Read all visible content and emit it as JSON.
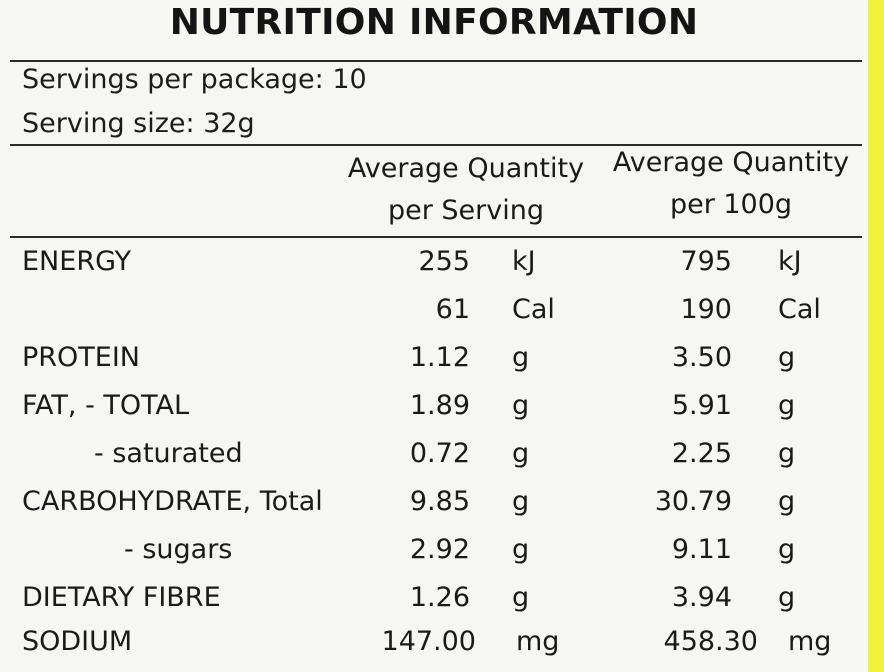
{
  "title": "NUTRITION INFORMATION",
  "servings_per_package": "Servings per package: 10",
  "serving_size": "Serving size: 32g",
  "columns": {
    "per_serving": [
      "Average Quantity",
      "per Serving"
    ],
    "per_100g": [
      "Average Quantity",
      "per 100g"
    ]
  },
  "rows": [
    {
      "label": "ENERGY",
      "serving_value": "255",
      "serving_unit": "kJ",
      "per100_value": "795",
      "per100_unit": "kJ"
    },
    {
      "label": "",
      "serving_value": "61",
      "serving_unit": "Cal",
      "per100_value": "190",
      "per100_unit": "Cal"
    },
    {
      "label": "PROTEIN",
      "serving_value": "1.12",
      "serving_unit": "g",
      "per100_value": "3.50",
      "per100_unit": "g"
    },
    {
      "label": "FAT, - TOTAL",
      "serving_value": "1.89",
      "serving_unit": "g",
      "per100_value": "5.91",
      "per100_unit": "g"
    },
    {
      "label": "- saturated",
      "serving_value": "0.72",
      "serving_unit": "g",
      "per100_value": "2.25",
      "per100_unit": "g"
    },
    {
      "label": "CARBOHYDRATE, Total",
      "serving_value": "9.85",
      "serving_unit": "g",
      "per100_value": "30.79",
      "per100_unit": "g"
    },
    {
      "label": "- sugars",
      "serving_value": "2.92",
      "serving_unit": "g",
      "per100_value": "9.11",
      "per100_unit": "g"
    },
    {
      "label": "DIETARY FIBRE",
      "serving_value": "1.26",
      "serving_unit": "g",
      "per100_value": "3.94",
      "per100_unit": "g"
    },
    {
      "label": "SODIUM",
      "serving_value": "147.00",
      "serving_unit": "mg",
      "per100_value": "458.30",
      "per100_unit": "mg"
    }
  ],
  "colors": {
    "background": "#f6f6f3",
    "border_accent": "#eef23a",
    "text": "#1a1a1a"
  }
}
